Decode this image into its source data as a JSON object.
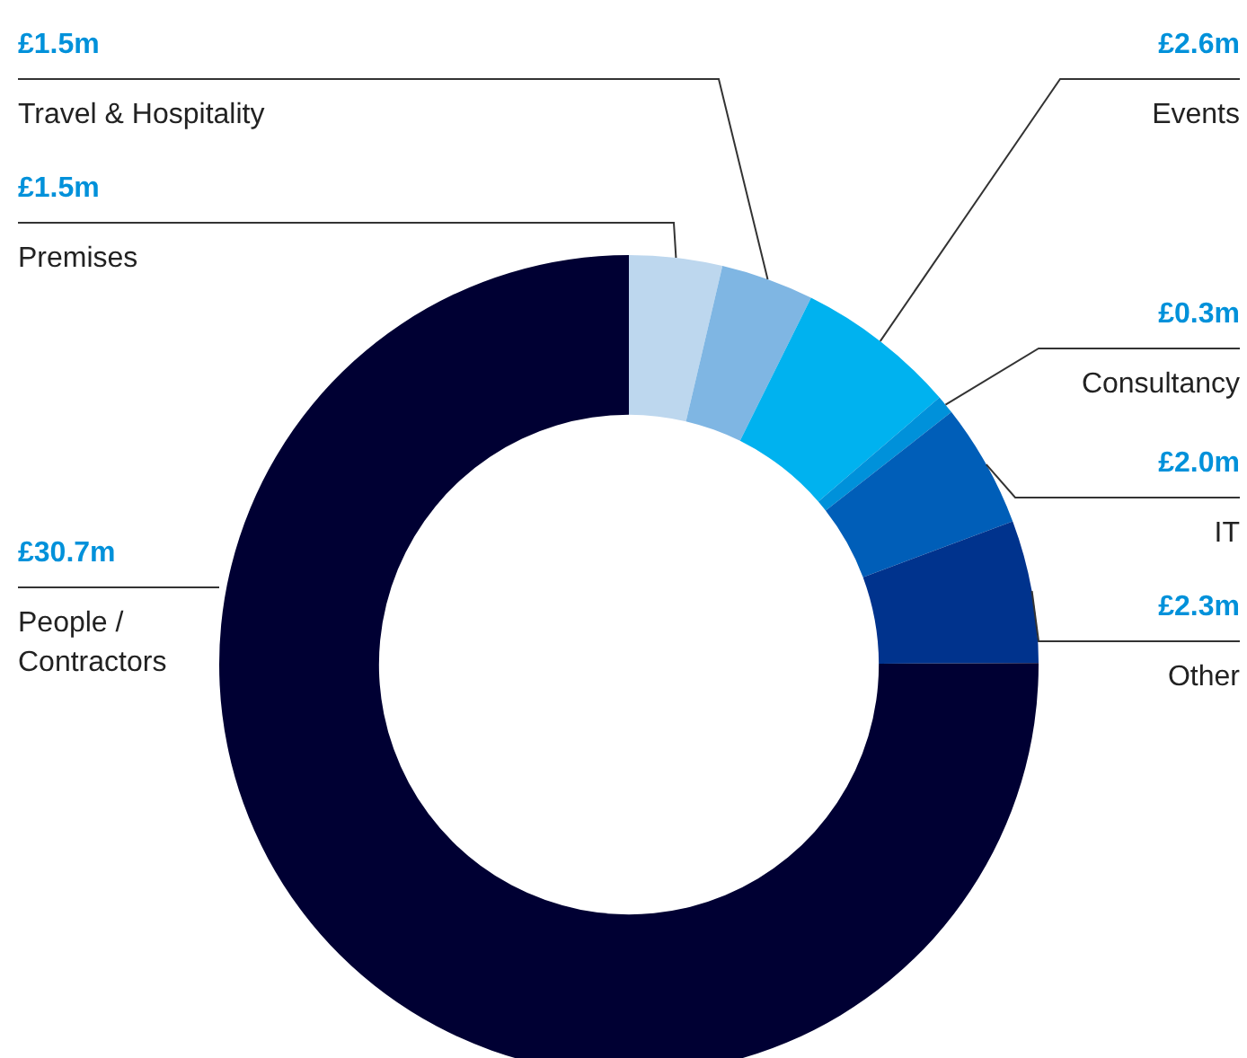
{
  "chart_data": {
    "type": "donut",
    "categories": [
      "Premises",
      "Travel & Hospitality",
      "Events",
      "Consultancy",
      "IT",
      "Other",
      "People / Contractors"
    ],
    "values": [
      1.5,
      1.5,
      2.6,
      0.3,
      2.0,
      2.3,
      30.7
    ],
    "value_labels": [
      "£1.5m",
      "£1.5m",
      "£2.6m",
      "£0.3m",
      "£2.0m",
      "£2.3m",
      "£30.7m"
    ],
    "colors": [
      "#bdd7ee",
      "#7fb6e3",
      "#00b2ef",
      "#0091da",
      "#005eb8",
      "#00338d",
      "#000033"
    ],
    "legend": false
  }
}
